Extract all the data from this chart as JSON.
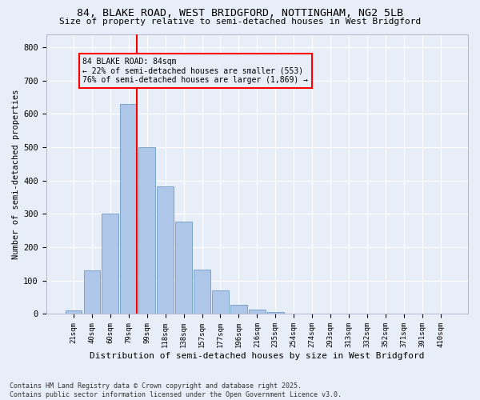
{
  "title1": "84, BLAKE ROAD, WEST BRIDGFORD, NOTTINGHAM, NG2 5LB",
  "title2": "Size of property relative to semi-detached houses in West Bridgford",
  "xlabel": "Distribution of semi-detached houses by size in West Bridgford",
  "ylabel": "Number of semi-detached properties",
  "categories": [
    "21sqm",
    "40sqm",
    "60sqm",
    "79sqm",
    "99sqm",
    "118sqm",
    "138sqm",
    "157sqm",
    "177sqm",
    "196sqm",
    "216sqm",
    "235sqm",
    "254sqm",
    "274sqm",
    "293sqm",
    "313sqm",
    "332sqm",
    "352sqm",
    "371sqm",
    "391sqm",
    "410sqm"
  ],
  "values": [
    10,
    130,
    300,
    630,
    500,
    383,
    278,
    133,
    70,
    27,
    12,
    5,
    0,
    0,
    0,
    0,
    0,
    0,
    0,
    0,
    0
  ],
  "bar_color": "#aec6e8",
  "bar_edge_color": "#5a8fc0",
  "red_line_index": 3,
  "annotation_title": "84 BLAKE ROAD: 84sqm",
  "annotation_line1": "← 22% of semi-detached houses are smaller (553)",
  "annotation_line2": "76% of semi-detached houses are larger (1,869) →",
  "ylim": [
    0,
    840
  ],
  "yticks": [
    0,
    100,
    200,
    300,
    400,
    500,
    600,
    700,
    800
  ],
  "footer1": "Contains HM Land Registry data © Crown copyright and database right 2025.",
  "footer2": "Contains public sector information licensed under the Open Government Licence v3.0.",
  "bg_color": "#e8eef8",
  "grid_color": "#ffffff"
}
